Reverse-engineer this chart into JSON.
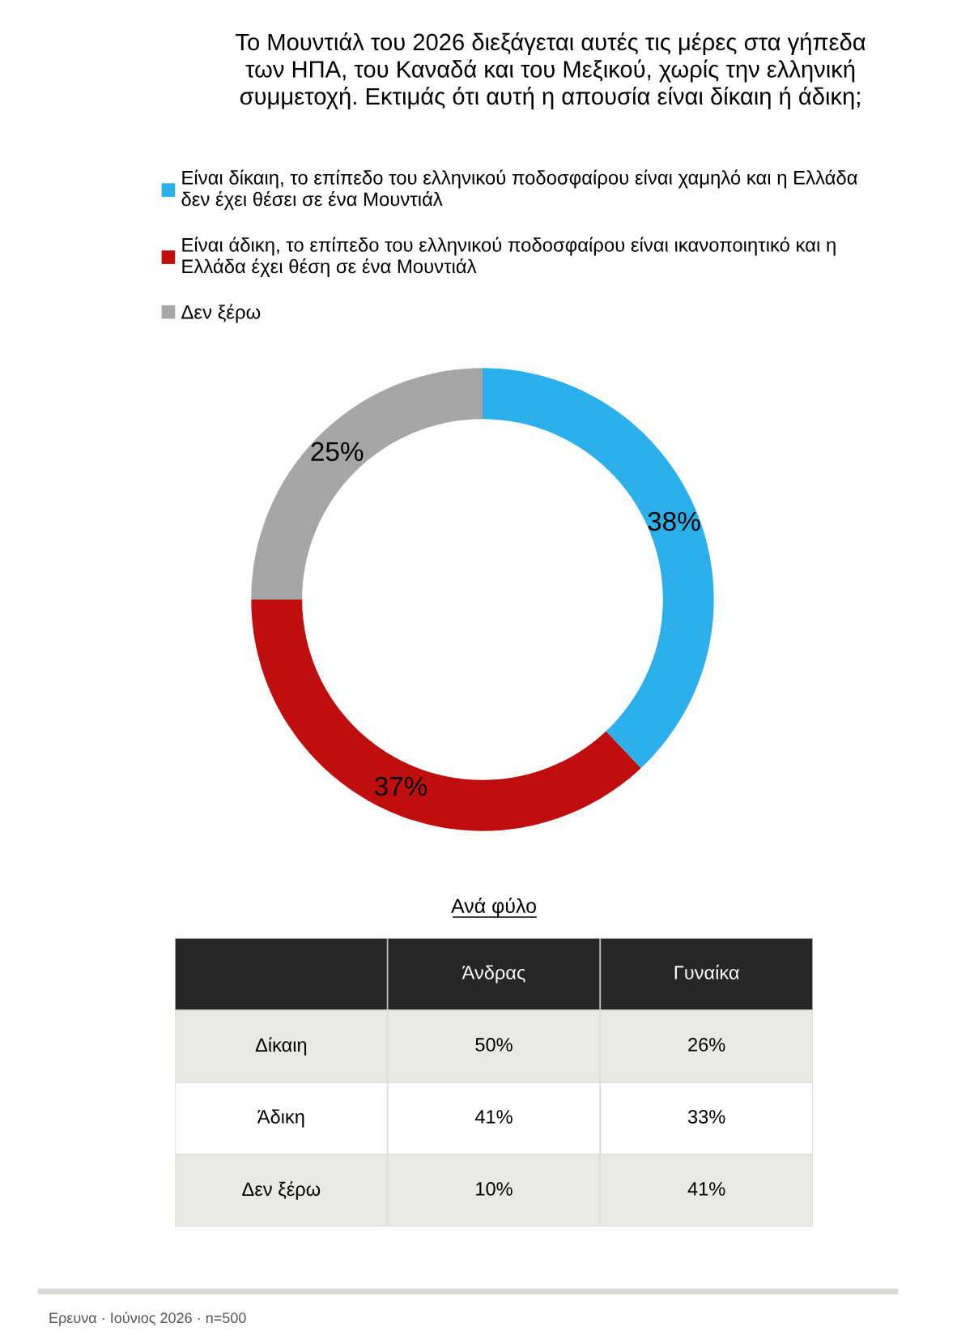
{
  "chart_data": [
    {
      "type": "donut",
      "title": "Το Μουντιάλ του 2026 διεξάγεται αυτές τις μέρες στα γήπεδα\nτων ΗΠΑ, του Καναδά και του Μεξικού, χωρίς την ελληνική\nσυμμετοχή. Εκτιμάς ότι αυτή η απουσία είναι δίκαιη ή άδικη;",
      "categories": [
        "Είναι δίκαιη, το επίπεδο του ελληνικού ποδοσφαίρου είναι χαμηλό και η Ελλάδα\nδεν έχει θέσει σε ένα Μουντιάλ",
        "Είναι άδικη, το επίπεδο του ελληνικού ποδοσφαίρου είναι ικανοποιητικό και η\nΕλλάδα έχει θέση σε ένα Μουντιάλ",
        "Δεν ξέρω"
      ],
      "values": [
        38,
        37,
        25
      ],
      "colors": [
        "#2cb0ec",
        "#c00d0d",
        "#a6a6a6"
      ],
      "value_labels": [
        "38%",
        "37%",
        "25%"
      ],
      "legend": "top"
    },
    {
      "type": "other",
      "title": "Ανά φύλο",
      "categories": [
        "Άνδρας",
        "Γυναίκα"
      ],
      "y_categories": [
        "Δίκαιη",
        "Άδικη",
        "Δεν ξέρω"
      ],
      "cell_labels": [
        [
          "50%",
          "26%"
        ],
        [
          "41%",
          "33%"
        ],
        [
          "10%",
          "41%"
        ]
      ],
      "annotations": [
        "Ερευνα · Ιούνιος 2026 · n=500"
      ]
    }
  ]
}
